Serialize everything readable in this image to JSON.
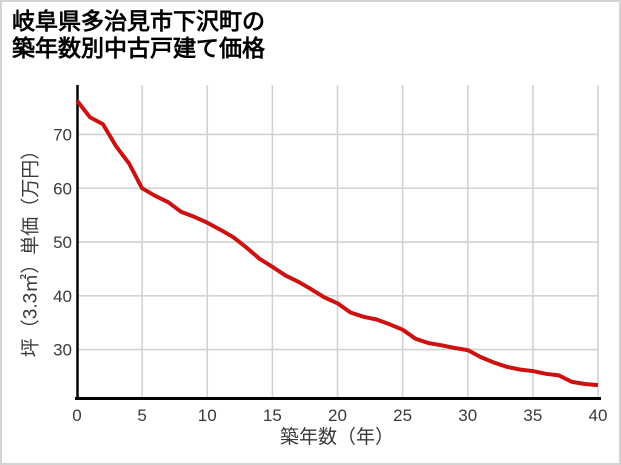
{
  "title": {
    "line1": "岐阜県多治見市下沢町の",
    "line2": "築年数別中古戸建て価格"
  },
  "chart_data": {
    "type": "line",
    "title": "岐阜県多治見市下沢町の築年数別中古戸建て価格",
    "xlabel": "築年数（年）",
    "ylabel": "坪（3.3㎡）単価（万円）",
    "x": [
      0,
      1,
      2,
      3,
      4,
      5,
      6,
      7,
      8,
      9,
      10,
      11,
      12,
      13,
      14,
      15,
      16,
      17,
      18,
      19,
      20,
      21,
      22,
      23,
      24,
      25,
      26,
      27,
      28,
      29,
      30,
      31,
      32,
      33,
      34,
      35,
      36,
      37,
      38,
      39,
      40
    ],
    "values": [
      76.3,
      73.2,
      71.9,
      67.8,
      64.6,
      60.0,
      58.6,
      57.4,
      55.6,
      54.7,
      53.6,
      52.3,
      50.9,
      49.0,
      46.9,
      45.4,
      43.8,
      42.6,
      41.2,
      39.7,
      38.6,
      36.9,
      36.1,
      35.6,
      34.7,
      33.7,
      32.0,
      31.2,
      30.8,
      30.3,
      29.9,
      28.6,
      27.6,
      26.8,
      26.3,
      26.0,
      25.5,
      25.2,
      24.0,
      23.6,
      23.4
    ],
    "xlim": [
      0,
      40
    ],
    "ylim": [
      21,
      79.2
    ],
    "x_ticks": [
      0,
      5,
      10,
      15,
      20,
      25,
      30,
      35,
      40
    ],
    "y_ticks": [
      30,
      40,
      50,
      60,
      70
    ],
    "grid": true,
    "legend": "none"
  },
  "colors": {
    "line": "#cc1111",
    "grid": "#d2d2d2",
    "axis": "#000000",
    "tick_text": "#3a3a3a",
    "title_text": "#000000",
    "frame": "#d4d4d4",
    "background": "#ffffff"
  }
}
